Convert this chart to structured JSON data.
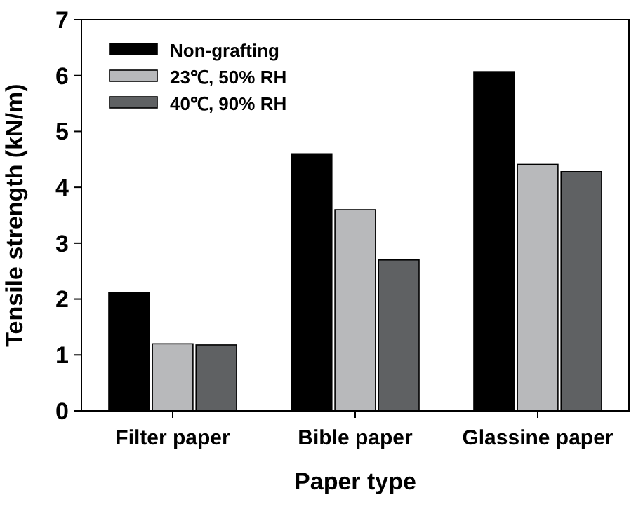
{
  "chart_data": {
    "type": "bar",
    "xlabel": "Paper type",
    "ylabel": "Tensile strength (kN/m)",
    "categories": [
      "Filter paper",
      "Bible paper",
      "Glassine paper"
    ],
    "series": [
      {
        "name": "Non-grafting",
        "color": "#000000",
        "values": [
          2.12,
          4.6,
          6.07
        ]
      },
      {
        "name": "23℃, 50% RH",
        "color": "#b8b9bb",
        "values": [
          1.2,
          3.6,
          4.41
        ]
      },
      {
        "name": "40℃, 90% RH",
        "color": "#5f6163",
        "values": [
          1.18,
          2.7,
          4.28
        ]
      }
    ],
    "ylim": [
      0,
      7
    ],
    "yticks": [
      0,
      1,
      2,
      3,
      4,
      5,
      6,
      7
    ],
    "grid": false,
    "legend": "top left"
  }
}
